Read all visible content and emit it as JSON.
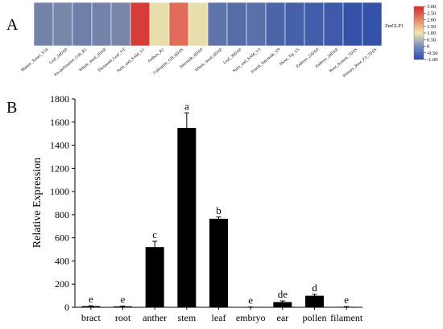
{
  "panel_a_label": "A",
  "panel_b_label": "B",
  "chart_data": [
    {
      "type": "heatmap",
      "row_label": "ZmGLP1",
      "columns": [
        "Mature_Tassel_V18",
        "Leaf_24DAP",
        "Pre-pollination_Cob_R1",
        "Whole_Seed_2DAP",
        "Thirteenth_Leaf_VT",
        "Stem_and_SAM_V1",
        "Anthers_R1",
        "Coleoptile_GH_6DAS",
        "Internode_6DAP",
        "Whole_Seed_6DAP",
        "Leaf_30DAP",
        "Stem_and_SAM_V3",
        "Fourth_Internode_V9",
        "Shoot_Tip_V5",
        "Embryo_22DAP",
        "Embryo_24DAP",
        "Root_System_7DAS",
        "Primary_Root_Z3_7DAS"
      ],
      "values": [
        -0.3,
        -0.25,
        -0.35,
        -0.3,
        -0.25,
        2.8,
        0.9,
        2.3,
        0.9,
        -0.5,
        -0.6,
        -0.55,
        -0.7,
        -0.75,
        -0.8,
        -0.85,
        -0.95,
        -0.95
      ],
      "colorbar_ticks": [
        "3.00",
        "2.50",
        "2.00",
        "1.50",
        "1.00",
        "0.50",
        "0",
        "-0.50",
        "-1.00"
      ],
      "scale": [
        -1.0,
        3.0
      ],
      "colors": {
        "low": "#2e4ea8",
        "mid": "#f2e4ad",
        "high": "#d42a2a"
      }
    },
    {
      "type": "bar",
      "ylabel": "Relative Expression",
      "ylim": [
        0,
        1800
      ],
      "yticks": [
        "0",
        "200",
        "400",
        "600",
        "800",
        "1000",
        "1200",
        "1400",
        "1600",
        "1800"
      ],
      "categories": [
        "bract",
        "root",
        "anther",
        "stem",
        "leaf",
        "embryo",
        "ear",
        "pollen",
        "filament"
      ],
      "values": [
        10,
        8,
        520,
        1550,
        765,
        2,
        45,
        100,
        4
      ],
      "errors": [
        3,
        3,
        50,
        130,
        15,
        1,
        10,
        12,
        2
      ],
      "letters": [
        "e",
        "e",
        "c",
        "a",
        "b",
        "e",
        "de",
        "d",
        "e"
      ],
      "bar_color": "#000000"
    }
  ]
}
